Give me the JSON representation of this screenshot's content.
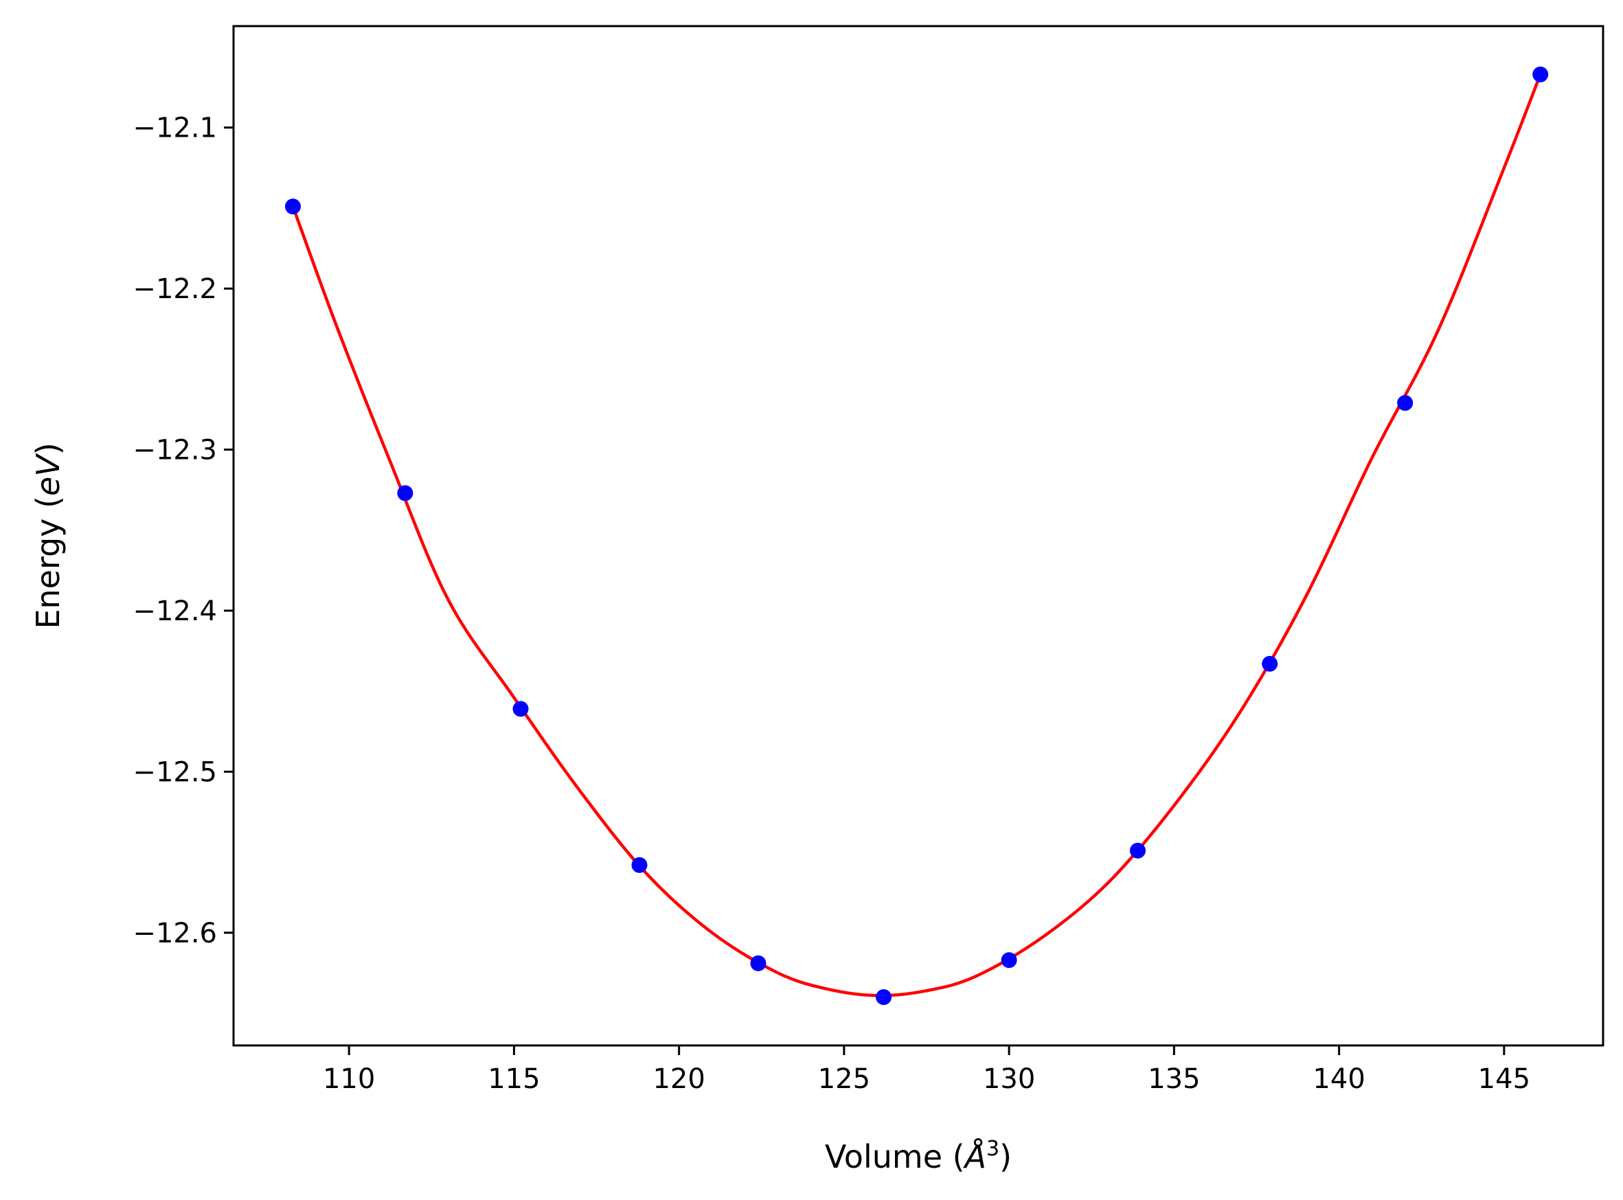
{
  "chart_data": {
    "type": "scatter",
    "title": "",
    "xlabel": "Volume (Å³)",
    "ylabel": "Energy (eV)",
    "xlabel_parts": {
      "prefix": "Volume (",
      "symbol": "Å",
      "superscript": "3",
      "suffix": ")"
    },
    "ylabel_parts": {
      "prefix": "Energy (",
      "italic": "eV",
      "suffix": ")"
    },
    "xlim": [
      106.5,
      148.0
    ],
    "ylim": [
      -12.67,
      -12.037
    ],
    "xticks": [
      110,
      115,
      120,
      125,
      130,
      135,
      140,
      145
    ],
    "xtick_labels": [
      "110",
      "115",
      "120",
      "125",
      "130",
      "135",
      "140",
      "145"
    ],
    "yticks": [
      -12.1,
      -12.2,
      -12.3,
      -12.4,
      -12.5,
      -12.6
    ],
    "ytick_labels": [
      "−12.1",
      "−12.2",
      "−12.3",
      "−12.4",
      "−12.5",
      "−12.6"
    ],
    "grid": false,
    "legend": "none",
    "series": [
      {
        "kind": "points",
        "color": "#0000ff",
        "x": [
          108.3,
          111.7,
          115.2,
          118.8,
          122.4,
          126.2,
          130.0,
          133.9,
          137.9,
          142.0,
          146.1
        ],
        "y": [
          -12.149,
          -12.327,
          -12.461,
          -12.558,
          -12.619,
          -12.64,
          -12.617,
          -12.549,
          -12.433,
          -12.271,
          -12.067
        ]
      },
      {
        "kind": "fit-curve",
        "color": "#ff0000",
        "x": [
          108.3,
          109.6,
          111.2,
          113.0,
          115.0,
          117.0,
          119.0,
          121.0,
          123.0,
          124.5,
          126.0,
          127.5,
          129.0,
          131.0,
          133.0,
          135.0,
          137.0,
          139.0,
          141.0,
          143.0,
          145.0,
          146.1
        ],
        "y": [
          -12.149,
          -12.222,
          -12.305,
          -12.393,
          -12.454,
          -12.512,
          -12.563,
          -12.6,
          -12.625,
          -12.635,
          -12.639,
          -12.636,
          -12.627,
          -12.603,
          -12.569,
          -12.521,
          -12.463,
          -12.391,
          -12.305,
          -12.226,
          -12.125,
          -12.067
        ]
      }
    ]
  }
}
